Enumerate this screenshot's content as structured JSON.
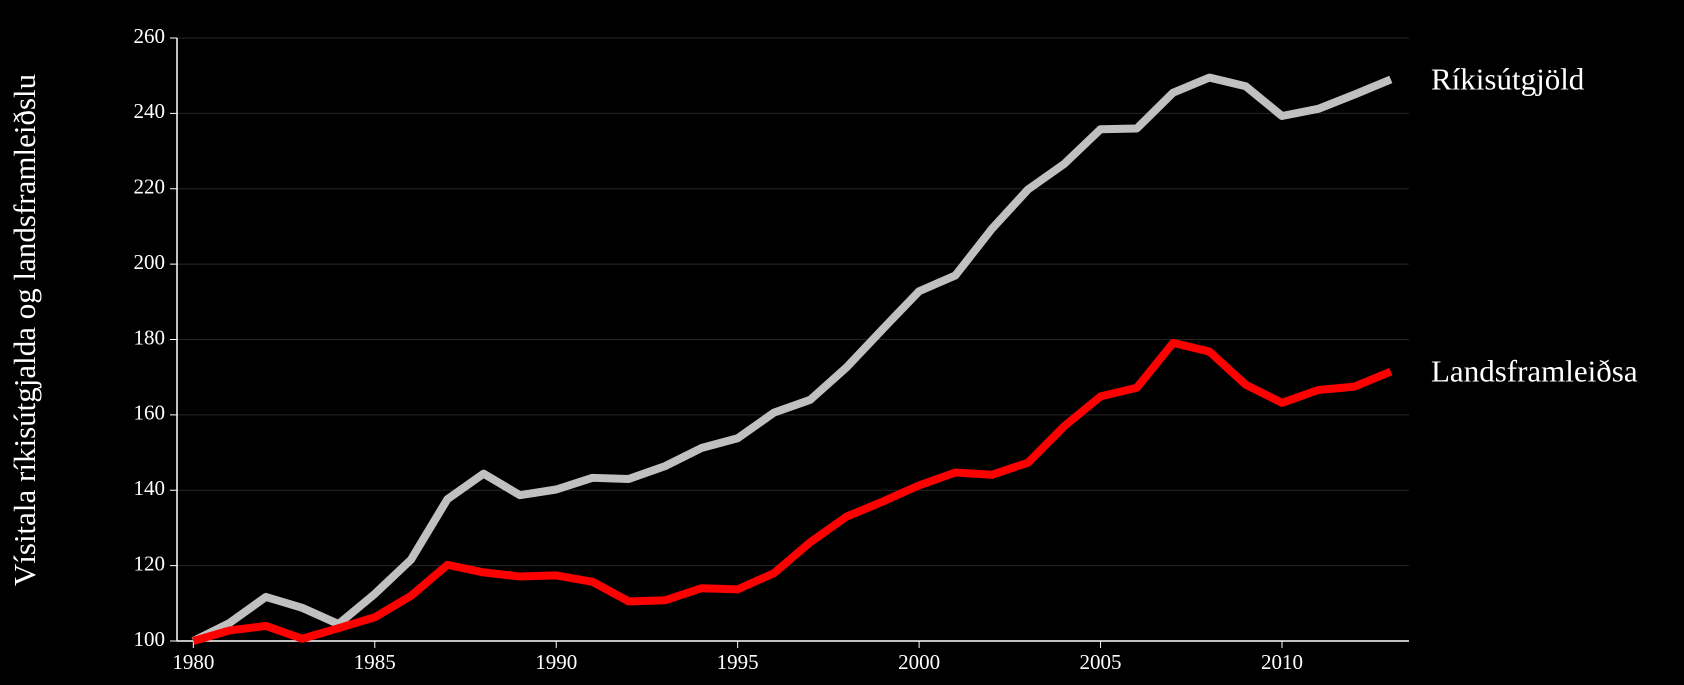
{
  "chart_data": {
    "type": "line",
    "y_label": "Vísitala ríkisútgjalda og landsframleiðslu",
    "x": [
      1980,
      1981,
      1982,
      1983,
      1984,
      1985,
      1986,
      1987,
      1988,
      1989,
      1990,
      1991,
      1992,
      1993,
      1994,
      1995,
      1996,
      1997,
      1998,
      1999,
      2000,
      2001,
      2002,
      2003,
      2004,
      2005,
      2006,
      2007,
      2008,
      2009,
      2010,
      2011,
      2012,
      2013
    ],
    "series": [
      {
        "name": "Ríkisútgjöld",
        "color": "#c0c0c0",
        "values": [
          100,
          104.8,
          111.7,
          108.8,
          104.5,
          112.5,
          121.6,
          137.6,
          144.4,
          138.7,
          140.2,
          143.3,
          143,
          146.4,
          151.2,
          153.8,
          160.6,
          164,
          172.6,
          182.8,
          192.8,
          197,
          209.3,
          219.8,
          226.6,
          235.8,
          236,
          245.5,
          249.5,
          247.2,
          239.3,
          241.2,
          245,
          249
        ]
      },
      {
        "name": "Landsframleiðsa",
        "color": "#ff0000",
        "values": [
          100,
          102.8,
          104,
          100.6,
          103.4,
          106.3,
          112,
          120.2,
          118.2,
          117.1,
          117.4,
          115.7,
          110.5,
          110.8,
          114,
          113.7,
          118,
          126.2,
          133,
          137,
          141.3,
          144.7,
          144.1,
          147.3,
          157,
          164.9,
          167.2,
          179.1,
          176.8,
          168,
          163.2,
          166.6,
          167.5,
          171.5
        ]
      }
    ],
    "xlim": [
      1979.55,
      2013.5
    ],
    "xticks": [
      1980,
      1985,
      1990,
      1995,
      2000,
      2005,
      2010
    ],
    "ylim": [
      100,
      260
    ],
    "yticks": [
      100,
      120,
      140,
      160,
      180,
      200,
      220,
      240,
      260
    ],
    "grid": true
  }
}
